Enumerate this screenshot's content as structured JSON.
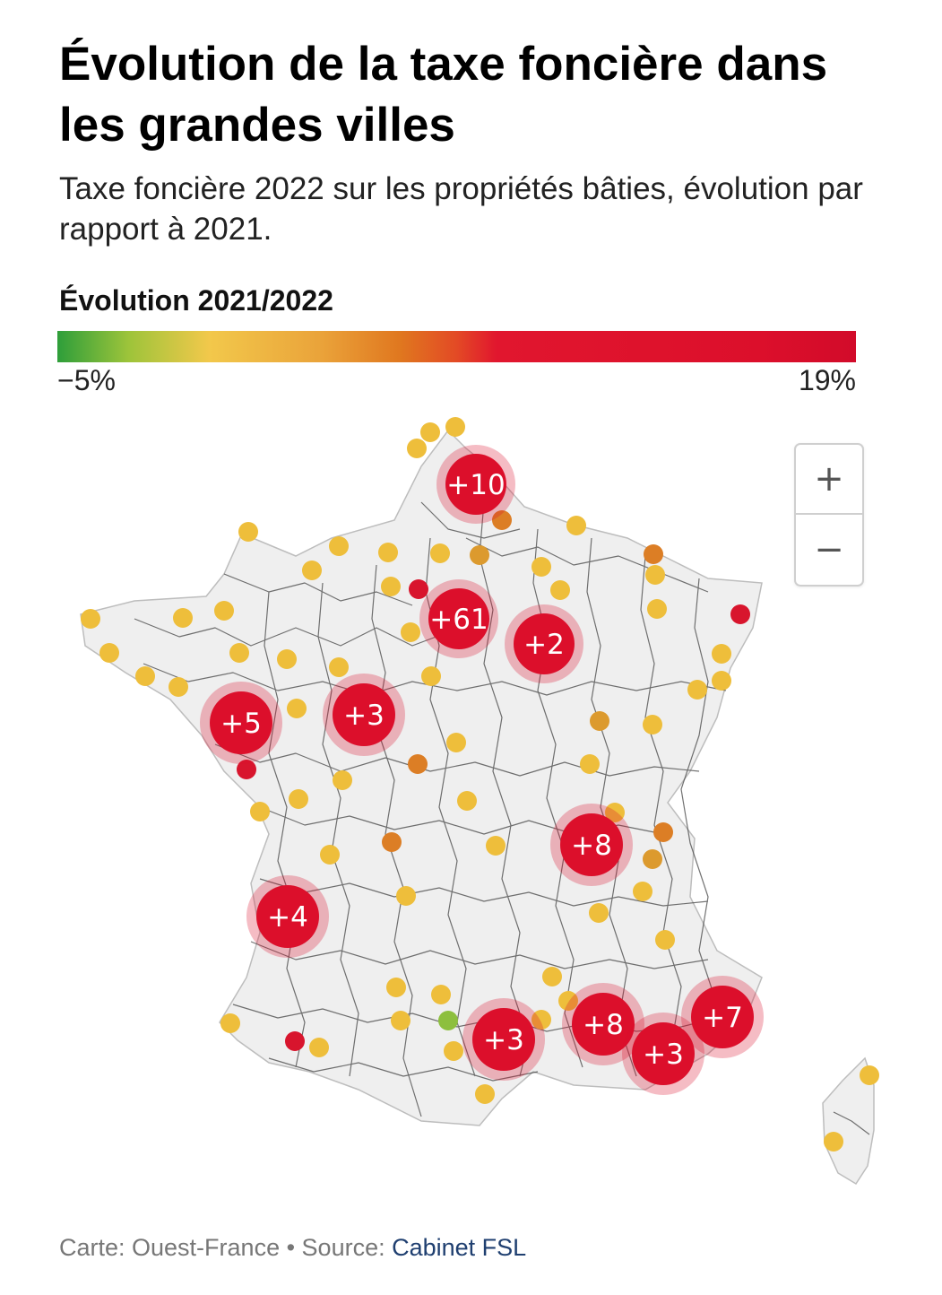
{
  "title": "Évolution de la taxe foncière dans les grandes villes",
  "subtitle": "Taxe foncière 2022 sur les propriétés bâties, évolution par rapport à 2021.",
  "legend": {
    "title": "Évolution 2021/2022",
    "min_label": "−5%",
    "max_label": "19%",
    "min_value": -5,
    "max_value": 19,
    "colors": [
      "#2e9e3a",
      "#f2c84b",
      "#e0771f",
      "#dc0f2b"
    ]
  },
  "zoom": {
    "in_label": "+",
    "out_label": "−"
  },
  "clusters": [
    {
      "label": "+10"
    },
    {
      "label": "+61"
    },
    {
      "label": "+2"
    },
    {
      "label": "+5"
    },
    {
      "label": "+3"
    },
    {
      "label": "+8"
    },
    {
      "label": "+4"
    },
    {
      "label": "+3"
    },
    {
      "label": "+8"
    },
    {
      "label": "+3"
    },
    {
      "label": "+7"
    }
  ],
  "colors": {
    "cluster": "#dc0f2b",
    "cluster_halo": "#f0a3ad",
    "dot_yellow": "#eebe3b",
    "dot_orange": "#dc7e25",
    "dot_red": "#d8152d",
    "dot_green": "#8dbf3e",
    "land": "#efefef",
    "border": "#444444"
  },
  "footer": {
    "prefix": "Carte: Ouest-France • Source: ",
    "link": "Cabinet FSL"
  }
}
